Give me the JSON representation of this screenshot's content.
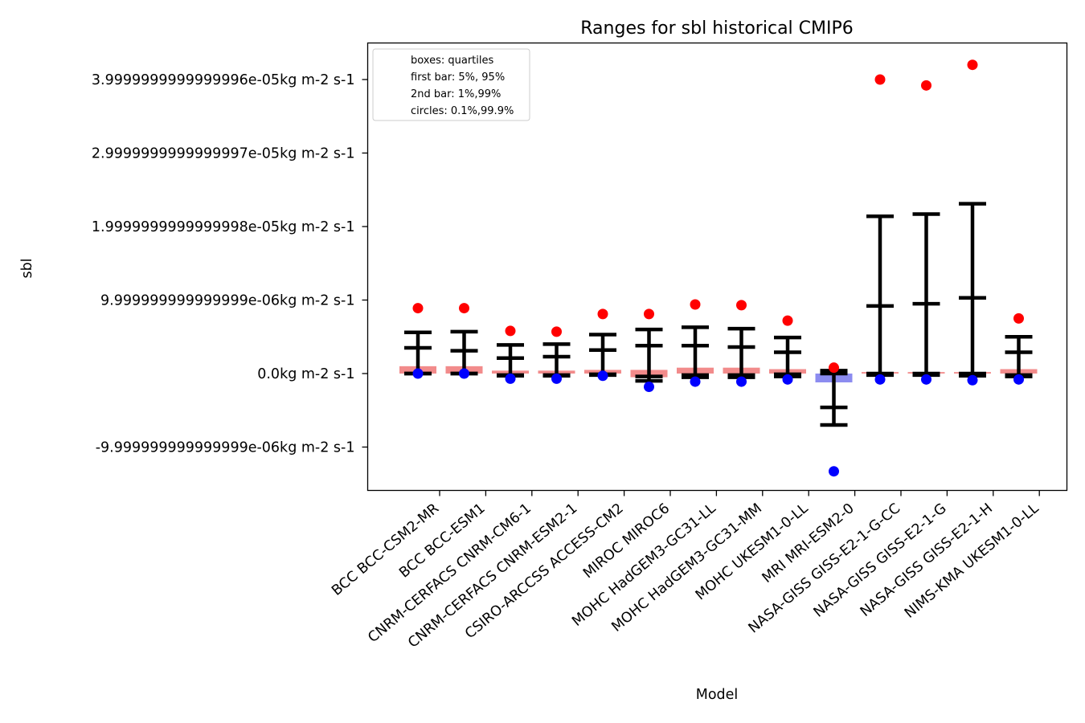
{
  "chart_data": {
    "type": "box",
    "title": "Ranges for sbl historical CMIP6",
    "xlabel": "Model",
    "ylabel": "sbl",
    "ylim": [
      -1.6e-05,
      4.5e-05
    ],
    "yticks": [
      {
        "value": -1e-05,
        "label": "-9.999999999999999e-06kg m-2 s-1"
      },
      {
        "value": 0,
        "label": "0.0kg m-2 s-1"
      },
      {
        "value": 1e-05,
        "label": "9.999999999999999e-06kg m-2 s-1"
      },
      {
        "value": 2e-05,
        "label": "1.9999999999999998e-05kg m-2 s-1"
      },
      {
        "value": 3e-05,
        "label": "2.9999999999999997e-05kg m-2 s-1"
      },
      {
        "value": 4e-05,
        "label": "3.9999999999999996e-05kg m-2 s-1"
      }
    ],
    "legend": {
      "placement": "upper-left",
      "entries": [
        "boxes: quartiles",
        "first bar: 5%, 95%",
        "2nd bar: 1%,99%",
        "circles: 0.1%,99.9%"
      ]
    },
    "colors": {
      "box_positive": "#f28b8b",
      "box_negative": "#8c8cf0",
      "whisker": "#000000",
      "circle_high": "#ff0000",
      "circle_low": "#0000ff"
    },
    "categories": [
      "BCC BCC-CSM2-MR",
      "BCC BCC-ESM1",
      "CNRM-CERFACS CNRM-CM6-1",
      "CNRM-CERFACS CNRM-ESM2-1",
      "CSIRO-ARCCSS ACCESS-CM2",
      "MIROC MIROC6",
      "MOHC HadGEM3-GC31-LL",
      "MOHC HadGEM3-GC31-MM",
      "MOHC UKESM1-0-LL",
      "MRI MRI-ESM2-0",
      "NASA-GISS GISS-E2-1-G-CC",
      "NASA-GISS GISS-E2-1-G",
      "NASA-GISS GISS-E2-1-H",
      "NIMS-KMA UKESM1-0-LL"
    ],
    "series": [
      {
        "q1": 0.0,
        "q3": 1e-06,
        "p5": 0.0,
        "p95": 3.5e-06,
        "p1": 0.0,
        "p99": 5.6e-06,
        "p01": 0.0,
        "p999": 8.9e-06,
        "sign": "positive"
      },
      {
        "q1": 0.0,
        "q3": 1e-06,
        "p5": 0.0,
        "p95": 3.1e-06,
        "p1": 0.0,
        "p99": 5.7e-06,
        "p01": 0.0,
        "p999": 8.9e-06,
        "sign": "positive"
      },
      {
        "q1": 0.0,
        "q3": 4e-07,
        "p5": -2e-07,
        "p95": 2.1e-06,
        "p1": -3e-07,
        "p99": 3.9e-06,
        "p01": -7e-07,
        "p999": 5.8e-06,
        "sign": "positive"
      },
      {
        "q1": 0.0,
        "q3": 4e-07,
        "p5": -2e-07,
        "p95": 2.3e-06,
        "p1": -3e-07,
        "p99": 4e-06,
        "p01": -7e-07,
        "p999": 5.7e-06,
        "sign": "positive"
      },
      {
        "q1": 0.0,
        "q3": 5e-07,
        "p5": -1e-07,
        "p95": 3.2e-06,
        "p1": -2e-07,
        "p99": 5.3e-06,
        "p01": -3e-07,
        "p999": 8.1e-06,
        "sign": "positive"
      },
      {
        "q1": -5e-07,
        "q3": 5e-07,
        "p5": -4e-07,
        "p95": 3.8e-06,
        "p1": -1e-06,
        "p99": 6e-06,
        "p01": -1.8e-06,
        "p999": 8.1e-06,
        "sign": "positive"
      },
      {
        "q1": 0.0,
        "q3": 8e-07,
        "p5": -2e-07,
        "p95": 3.8e-06,
        "p1": -5e-07,
        "p99": 6.3e-06,
        "p01": -1.1e-06,
        "p999": 9.4e-06,
        "sign": "positive"
      },
      {
        "q1": 0.0,
        "q3": 8e-07,
        "p5": -2e-07,
        "p95": 3.6e-06,
        "p1": -5e-07,
        "p99": 6.1e-06,
        "p01": -1.1e-06,
        "p999": 9.3e-06,
        "sign": "positive"
      },
      {
        "q1": 0.0,
        "q3": 6e-07,
        "p5": -1e-07,
        "p95": 2.9e-06,
        "p1": -4e-07,
        "p99": 4.9e-06,
        "p01": -8e-07,
        "p999": 7.2e-06,
        "sign": "positive"
      },
      {
        "q1": -1.2e-06,
        "q3": 0.0,
        "p5": -4.6e-06,
        "p95": 0.0,
        "p1": -7e-06,
        "p99": 4e-07,
        "p01": -1.33e-05,
        "p999": 8e-07,
        "sign": "negative"
      },
      {
        "q1": 0.0,
        "q3": 2e-07,
        "p5": 0.0,
        "p95": 9.2e-06,
        "p1": -2e-07,
        "p99": 2.14e-05,
        "p01": -8e-07,
        "p999": 4e-05,
        "sign": "positive"
      },
      {
        "q1": 0.0,
        "q3": 2e-07,
        "p5": 0.0,
        "p95": 9.5e-06,
        "p1": -2e-07,
        "p99": 2.17e-05,
        "p01": -8e-07,
        "p999": 3.92e-05,
        "sign": "positive"
      },
      {
        "q1": 0.0,
        "q3": 2e-07,
        "p5": 0.0,
        "p95": 1.03e-05,
        "p1": -3e-07,
        "p99": 2.31e-05,
        "p01": -9e-07,
        "p999": 4.2e-05,
        "sign": "positive"
      },
      {
        "q1": 0.0,
        "q3": 6e-07,
        "p5": -2e-07,
        "p95": 2.9e-06,
        "p1": -4e-07,
        "p99": 5e-06,
        "p01": -8e-07,
        "p999": 7.5e-06,
        "sign": "positive"
      }
    ]
  }
}
